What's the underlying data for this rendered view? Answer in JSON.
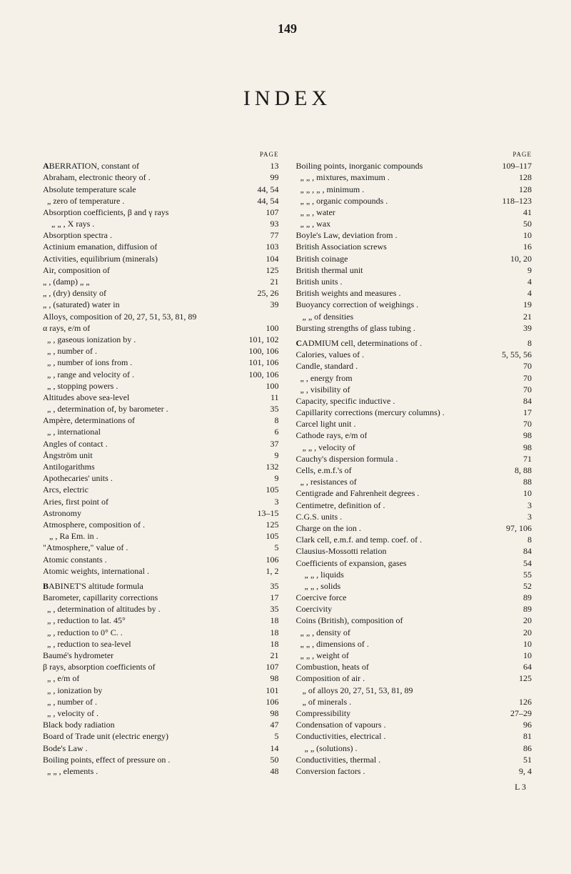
{
  "page_number": "149",
  "index_title": "INDEX",
  "page_label": "PAGE",
  "signature": "L 3",
  "left_column": [
    {
      "label": "ABERRATION, constant of",
      "pages": "13",
      "bold": true
    },
    {
      "label": "Abraham, electronic theory of .",
      "pages": "99"
    },
    {
      "label": "Absolute temperature scale",
      "pages": "44, 54"
    },
    {
      "label": "  „     zero of temperature .",
      "pages": "44, 54"
    },
    {
      "label": "Absorption coefficients, β and γ rays",
      "pages": "107"
    },
    {
      "label": "    „        „    , X rays .",
      "pages": "93"
    },
    {
      "label": "Absorption spectra .",
      "pages": "77"
    },
    {
      "label": "Actinium emanation, diffusion of",
      "pages": "103"
    },
    {
      "label": "Activities, equilibrium (minerals)",
      "pages": "104"
    },
    {
      "label": "Air, composition of",
      "pages": "125"
    },
    {
      "label": "„ , (damp) „    „",
      "pages": "21"
    },
    {
      "label": "„ , (dry) density of",
      "pages": "25, 26"
    },
    {
      "label": "„ , (saturated) water in",
      "pages": "39"
    },
    {
      "label": "Alloys, composition of   20, 27, 51, 53, 81, 89",
      "pages": ""
    },
    {
      "label": "α rays, e/m of",
      "pages": "100"
    },
    {
      "label": "  „  , gaseous ionization by .",
      "pages": "101, 102"
    },
    {
      "label": "  „  , number of .",
      "pages": "100, 106"
    },
    {
      "label": "  „  , number of ions from .",
      "pages": "101, 106"
    },
    {
      "label": "  „  , range and velocity of .",
      "pages": "100, 106"
    },
    {
      "label": "  „  , stopping powers .",
      "pages": "100"
    },
    {
      "label": "Altitudes above sea-level",
      "pages": "11"
    },
    {
      "label": "  „  , determination of, by barometer .",
      "pages": "35"
    },
    {
      "label": "Ampère, determinations of",
      "pages": "8"
    },
    {
      "label": "  „  , international",
      "pages": "6"
    },
    {
      "label": "Angles of contact .",
      "pages": "37"
    },
    {
      "label": "Ångström unit",
      "pages": "9"
    },
    {
      "label": "Antilogarithms",
      "pages": "132"
    },
    {
      "label": "Apothecaries' units .",
      "pages": "9"
    },
    {
      "label": "Arcs, electric",
      "pages": "105"
    },
    {
      "label": "Aries, first point of",
      "pages": "3"
    },
    {
      "label": "Astronomy",
      "pages": "13–15"
    },
    {
      "label": "Atmosphere, composition of .",
      "pages": "125"
    },
    {
      "label": "   „    , Ra Em. in .",
      "pages": "105"
    },
    {
      "label": "\"Atmosphere,\" value of .",
      "pages": "5"
    },
    {
      "label": "Atomic constants .",
      "pages": "106"
    },
    {
      "label": "Atomic weights, international .",
      "pages": "1, 2"
    },
    {
      "gap": true
    },
    {
      "label": "BABINET'S altitude formula",
      "pages": "35",
      "bold": true
    },
    {
      "label": "Barometer, capillarity corrections",
      "pages": "17"
    },
    {
      "label": "  „  , determination of altitudes by .",
      "pages": "35"
    },
    {
      "label": "  „  , reduction to lat. 45°",
      "pages": "18"
    },
    {
      "label": "  „  , reduction to 0° C. .",
      "pages": "18"
    },
    {
      "label": "  „  , reduction to sea-level",
      "pages": "18"
    },
    {
      "label": "Baumé's hydrometer",
      "pages": "21"
    },
    {
      "label": "β rays, absorption coefficients of",
      "pages": "107"
    },
    {
      "label": "  „  , e/m of",
      "pages": "98"
    },
    {
      "label": "  „  , ionization by",
      "pages": "101"
    },
    {
      "label": "  „  , number of .",
      "pages": "106"
    },
    {
      "label": "  „  , velocity of .",
      "pages": "98"
    },
    {
      "label": "Black body radiation",
      "pages": "47"
    },
    {
      "label": "Board of Trade unit (electric energy)",
      "pages": "5"
    },
    {
      "label": "Bode's Law .",
      "pages": "14"
    },
    {
      "label": "Boiling points, effect of pressure on .",
      "pages": "50"
    },
    {
      "label": "  „    „  , elements .",
      "pages": "48"
    }
  ],
  "right_column": [
    {
      "label": "Boiling points, inorganic compounds",
      "pages": "109–117"
    },
    {
      "label": "  „    „  , mixtures, maximum .",
      "pages": "128"
    },
    {
      "label": "  „    „  ,   „   , minimum .",
      "pages": "128"
    },
    {
      "label": "  „    „  , organic compounds .",
      "pages": "118–123"
    },
    {
      "label": "  „    „  , water",
      "pages": "41"
    },
    {
      "label": "  „    „  , wax",
      "pages": "50"
    },
    {
      "label": "Boyle's Law, deviation from .",
      "pages": "10"
    },
    {
      "label": "British Association screws",
      "pages": "16"
    },
    {
      "label": "British coinage",
      "pages": "10, 20"
    },
    {
      "label": "British thermal unit",
      "pages": "9"
    },
    {
      "label": "British units .",
      "pages": "4"
    },
    {
      "label": "British weights and measures .",
      "pages": "4"
    },
    {
      "label": "Buoyancy correction of weighings .",
      "pages": "19"
    },
    {
      "label": "   „        „   of densities",
      "pages": "21"
    },
    {
      "label": "Bursting strengths of glass tubing .",
      "pages": "39"
    },
    {
      "gap": true
    },
    {
      "label": "CADMIUM cell, determinations of .",
      "pages": "8",
      "bold": true
    },
    {
      "label": "Calories, values of .",
      "pages": "5, 55, 56"
    },
    {
      "label": "Candle, standard .",
      "pages": "70"
    },
    {
      "label": "  „  , energy from",
      "pages": "70"
    },
    {
      "label": "  „  , visibility of",
      "pages": "70"
    },
    {
      "label": "Capacity, specific inductive .",
      "pages": "84"
    },
    {
      "label": "Capillarity corrections (mercury columns) .",
      "pages": "17"
    },
    {
      "label": "Carcel light unit .",
      "pages": "70"
    },
    {
      "label": "Cathode rays, e/m of",
      "pages": "98"
    },
    {
      "label": "   „    „  , velocity of",
      "pages": "98"
    },
    {
      "label": "Cauchy's dispersion formula .",
      "pages": "71"
    },
    {
      "label": "Cells, e.m.f.'s of",
      "pages": "8, 88"
    },
    {
      "label": "  „ , resistances of",
      "pages": "88"
    },
    {
      "label": "Centigrade and Fahrenheit degrees .",
      "pages": "10"
    },
    {
      "label": "Centimetre, definition of .",
      "pages": "3"
    },
    {
      "label": "C.G.S. units .",
      "pages": "3"
    },
    {
      "label": "Charge on the ion .",
      "pages": "97, 106"
    },
    {
      "label": "Clark cell, e.m.f. and temp. coef. of .",
      "pages": "8"
    },
    {
      "label": "Clausius-Mossotti relation",
      "pages": "84"
    },
    {
      "label": "Coefficients of expansion, gases",
      "pages": "54"
    },
    {
      "label": "    „        „   , liquids",
      "pages": "55"
    },
    {
      "label": "    „        „   , solids",
      "pages": "52"
    },
    {
      "label": "Coercive force",
      "pages": "89"
    },
    {
      "label": "Coercivity",
      "pages": "89"
    },
    {
      "label": "Coins (British), composition of",
      "pages": "20"
    },
    {
      "label": "  „    „  , density of",
      "pages": "20"
    },
    {
      "label": "  „    „  , dimensions of .",
      "pages": "10"
    },
    {
      "label": "  „    „  , weight of",
      "pages": "10"
    },
    {
      "label": "Combustion, heats of",
      "pages": "64"
    },
    {
      "label": "Composition of air .",
      "pages": "125"
    },
    {
      "label": "   „    of alloys   20, 27, 51, 53, 81, 89",
      "pages": ""
    },
    {
      "label": "   „    of minerals .",
      "pages": "126"
    },
    {
      "label": "Compressibility",
      "pages": "27–29"
    },
    {
      "label": "Condensation of vapours .",
      "pages": "96"
    },
    {
      "label": "Conductivities, electrical .",
      "pages": "81"
    },
    {
      "label": "    „       „   (solutions) .",
      "pages": "86"
    },
    {
      "label": "Conductivities, thermal .",
      "pages": "51"
    },
    {
      "label": "Conversion factors .",
      "pages": "9, 4"
    }
  ]
}
